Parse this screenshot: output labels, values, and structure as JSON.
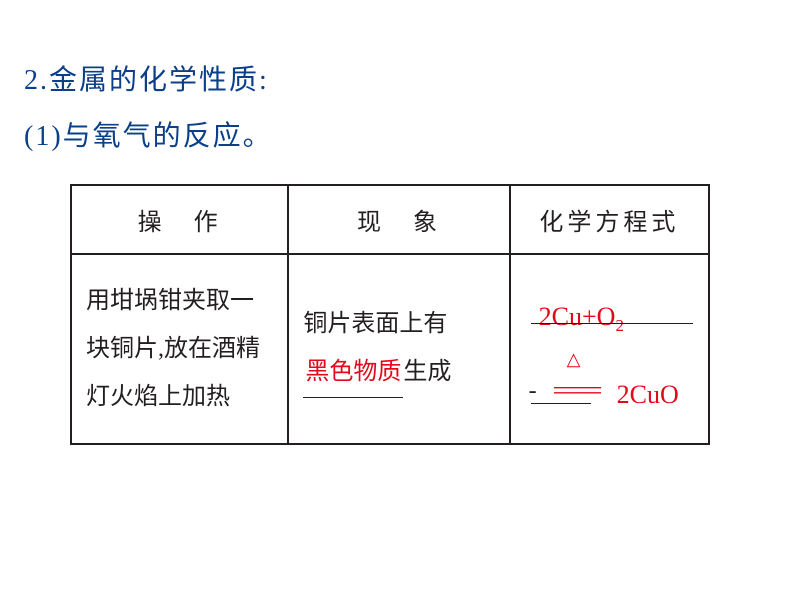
{
  "heading1": "2.金属的化学性质:",
  "heading2": "(1)与氧气的反应。",
  "table": {
    "headers": {
      "c1": "操　作",
      "c2": "现　象",
      "c3": "化学方程式"
    },
    "row": {
      "operation": "用坩埚钳夹取一块铜片,放在酒精灯火焰上加热",
      "phenom_prefix": "铜片表面上有",
      "phenom_fill": "黑色物质",
      "phenom_suffix": "生成",
      "eq_reactants": "2Cu+O",
      "eq_sub": "2",
      "eq_triangle": "△",
      "eq_dash": "-",
      "eq_equals": "====",
      "eq_product": "2CuO"
    }
  },
  "colors": {
    "heading": "#0c3f8a",
    "text": "#231f20",
    "highlight": "#e20a1a",
    "background": "#ffffff"
  }
}
